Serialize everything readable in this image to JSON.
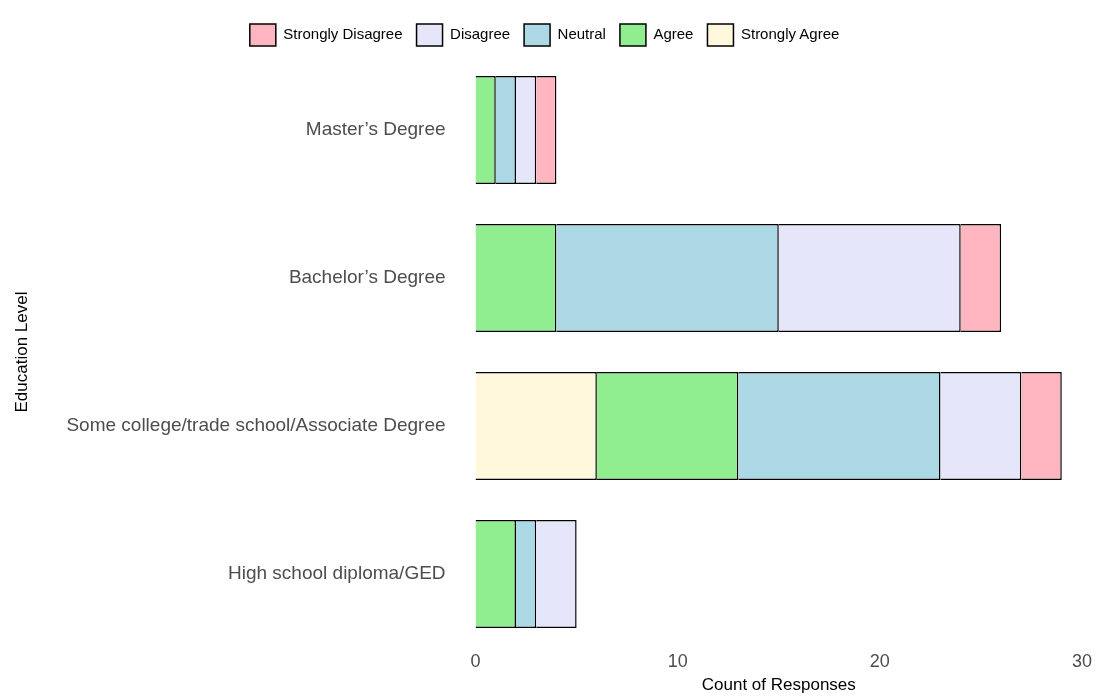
{
  "chart_data": {
    "type": "bar",
    "orientation": "horizontal",
    "stacked": true,
    "xlabel": "Count of Responses",
    "ylabel": "Education Level",
    "categories": [
      "Master’s Degree",
      "Bachelor’s Degree",
      "Some college/trade school/Associate Degree",
      "High school diploma/GED"
    ],
    "series": [
      {
        "name": "Strongly Agree",
        "color": "#fff8dc",
        "values": [
          0,
          0,
          6,
          0
        ]
      },
      {
        "name": "Agree",
        "color": "#90ee90",
        "values": [
          1,
          4,
          7,
          2
        ]
      },
      {
        "name": "Neutral",
        "color": "#add8e6",
        "values": [
          1,
          11,
          10,
          1
        ]
      },
      {
        "name": "Disagree",
        "color": "#e6e6fa",
        "values": [
          1,
          9,
          4,
          2
        ]
      },
      {
        "name": "Strongly Disagree",
        "color": "#ffb6c1",
        "values": [
          1,
          2,
          2,
          0
        ]
      }
    ],
    "xlim": [
      0,
      30
    ],
    "xticks": [
      0,
      10,
      20,
      30
    ],
    "grid": false,
    "legend": "top"
  }
}
